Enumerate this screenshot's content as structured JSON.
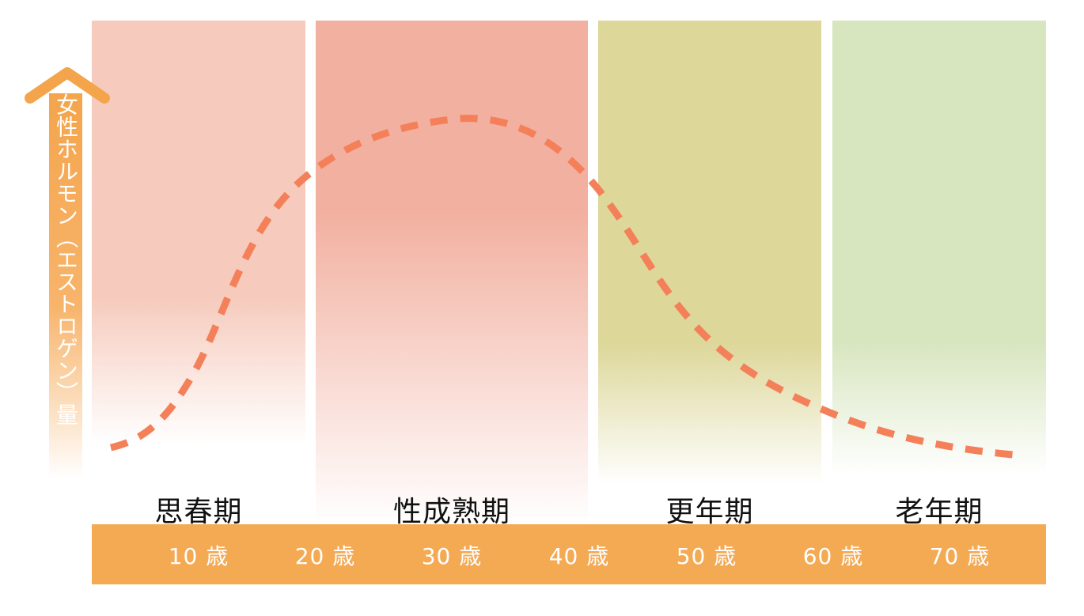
{
  "axis": {
    "label": "女性ホルモン（エストロゲン）量"
  },
  "phases": [
    {
      "label": "思春期",
      "color": "#f6cbbd"
    },
    {
      "label": "性成熟期",
      "color": "#f2b0a0"
    },
    {
      "label": "更年期",
      "color": "#ddd79a"
    },
    {
      "label": "老年期",
      "color": "#d8e6c0"
    }
  ],
  "ages": [
    "10 歳",
    "20 歳",
    "30 歳",
    "40 歳",
    "50 歳",
    "60 歳",
    "70 歳"
  ],
  "colors": {
    "accent": "#f4a953",
    "curve": "#f4805a"
  }
}
